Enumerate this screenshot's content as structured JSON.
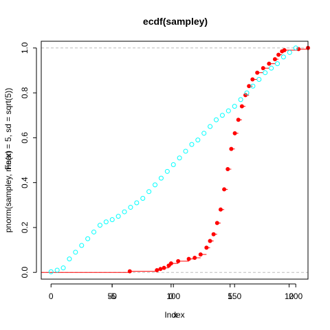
{
  "chart_data": {
    "type": "scatter",
    "title": "ecdf(sampley)",
    "xlabel": "Index",
    "xlabel_overlay": "x",
    "ylabel": "pnorm(sampley, mean = 5, sd = sqrt(5))",
    "ylabel_overlay": "Fn(x)",
    "yticks": [
      "0.0",
      "0.2",
      "0.4",
      "0.6",
      "0.8",
      "1.0"
    ],
    "ylim": [
      -0.03,
      1.03
    ],
    "x_axis_bottom": {
      "index_ticks": [
        "0",
        "50",
        "100",
        "150",
        "200"
      ],
      "index_range": [
        -8,
        210
      ],
      "x_ticks": [
        "-5",
        "0",
        "5",
        "10"
      ],
      "x_range": [
        -11,
        11.6
      ]
    },
    "reference_lines": [
      0,
      1
    ],
    "series": [
      {
        "kind": "step_ecdf",
        "color": "#ff0000",
        "points": [
          [
            -3.5,
            0.005
          ],
          [
            -1.2,
            0.01
          ],
          [
            -0.9,
            0.015
          ],
          [
            -0.6,
            0.02
          ],
          [
            -0.2,
            0.03
          ],
          [
            0.0,
            0.04
          ],
          [
            0.6,
            0.05
          ],
          [
            1.5,
            0.06
          ],
          [
            2.0,
            0.065
          ],
          [
            2.5,
            0.08
          ],
          [
            3.0,
            0.11
          ],
          [
            3.3,
            0.14
          ],
          [
            3.6,
            0.17
          ],
          [
            3.9,
            0.22
          ],
          [
            4.2,
            0.28
          ],
          [
            4.5,
            0.37
          ],
          [
            4.8,
            0.46
          ],
          [
            5.1,
            0.55
          ],
          [
            5.4,
            0.62
          ],
          [
            5.7,
            0.68
          ],
          [
            6.0,
            0.74
          ],
          [
            6.3,
            0.79
          ],
          [
            6.6,
            0.83
          ],
          [
            6.9,
            0.86
          ],
          [
            7.3,
            0.89
          ],
          [
            7.8,
            0.91
          ],
          [
            8.3,
            0.93
          ],
          [
            8.8,
            0.95
          ],
          [
            9.1,
            0.97
          ],
          [
            9.4,
            0.985
          ],
          [
            9.6,
            0.99
          ],
          [
            10.8,
            0.995
          ],
          [
            11.6,
            1.0
          ]
        ]
      },
      {
        "kind": "index_scatter",
        "color": "#00ffff",
        "points": [
          [
            0,
            0.003
          ],
          [
            5,
            0.01
          ],
          [
            10,
            0.02
          ],
          [
            15,
            0.06
          ],
          [
            20,
            0.09
          ],
          [
            25,
            0.12
          ],
          [
            30,
            0.15
          ],
          [
            35,
            0.18
          ],
          [
            40,
            0.21
          ],
          [
            45,
            0.225
          ],
          [
            50,
            0.235
          ],
          [
            55,
            0.25
          ],
          [
            60,
            0.27
          ],
          [
            65,
            0.29
          ],
          [
            70,
            0.31
          ],
          [
            75,
            0.33
          ],
          [
            80,
            0.36
          ],
          [
            85,
            0.39
          ],
          [
            90,
            0.42
          ],
          [
            95,
            0.45
          ],
          [
            100,
            0.48
          ],
          [
            105,
            0.51
          ],
          [
            110,
            0.54
          ],
          [
            115,
            0.57
          ],
          [
            120,
            0.59
          ],
          [
            125,
            0.62
          ],
          [
            130,
            0.65
          ],
          [
            135,
            0.68
          ],
          [
            140,
            0.7
          ],
          [
            145,
            0.72
          ],
          [
            150,
            0.74
          ],
          [
            155,
            0.77
          ],
          [
            160,
            0.8
          ],
          [
            165,
            0.83
          ],
          [
            170,
            0.86
          ],
          [
            175,
            0.89
          ],
          [
            180,
            0.91
          ],
          [
            185,
            0.93
          ],
          [
            190,
            0.96
          ],
          [
            195,
            0.98
          ],
          [
            200,
            1.0
          ]
        ]
      }
    ]
  }
}
